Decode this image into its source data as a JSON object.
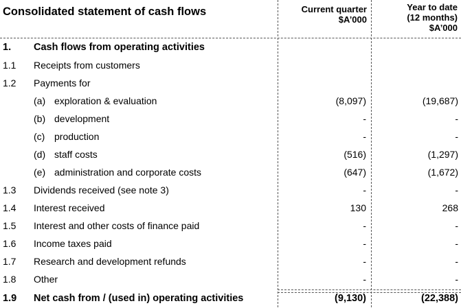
{
  "header": {
    "title": "Consolidated statement of cash flows",
    "col1": [
      "Current quarter",
      "$A’000"
    ],
    "col2": [
      "Year to date",
      "(12 months)",
      "$A’000"
    ]
  },
  "rows": [
    {
      "num": "1.",
      "sub": "",
      "label": "Cash flows from operating activities",
      "v1": "",
      "v2": "",
      "bold": true
    },
    {
      "num": "1.1",
      "sub": "",
      "label": "Receipts from customers",
      "v1": "",
      "v2": ""
    },
    {
      "num": "1.2",
      "sub": "",
      "label": "Payments for",
      "v1": "",
      "v2": ""
    },
    {
      "num": "",
      "sub": "(a)",
      "label": "exploration & evaluation",
      "v1": "(8,097)",
      "v2": "(19,687)"
    },
    {
      "num": "",
      "sub": "(b)",
      "label": "development",
      "v1": "-",
      "v2": "-"
    },
    {
      "num": "",
      "sub": "(c)",
      "label": "production",
      "v1": "-",
      "v2": "-"
    },
    {
      "num": "",
      "sub": "(d)",
      "label": "staff costs",
      "v1": "(516)",
      "v2": "(1,297)"
    },
    {
      "num": "",
      "sub": "(e)",
      "label": "administration and corporate costs",
      "v1": "(647)",
      "v2": "(1,672)"
    },
    {
      "num": "1.3",
      "sub": "",
      "label": "Dividends received (see note 3)",
      "v1": "-",
      "v2": "-"
    },
    {
      "num": "1.4",
      "sub": "",
      "label": "Interest received",
      "v1": "130",
      "v2": "268"
    },
    {
      "num": "1.5",
      "sub": "",
      "label": "Interest and other costs of finance paid",
      "v1": "-",
      "v2": "-"
    },
    {
      "num": "1.6",
      "sub": "",
      "label": "Income taxes paid",
      "v1": "-",
      "v2": "-"
    },
    {
      "num": "1.7",
      "sub": "",
      "label": "Research and development refunds",
      "v1": "-",
      "v2": "-"
    },
    {
      "num": "1.8",
      "sub": "",
      "label": "Other",
      "v1": "-",
      "v2": "-"
    },
    {
      "num": "1.9",
      "sub": "",
      "label": "Net cash from / (used in) operating activities",
      "v1": "(9,130)",
      "v2": "(22,388)",
      "bold": true
    }
  ]
}
